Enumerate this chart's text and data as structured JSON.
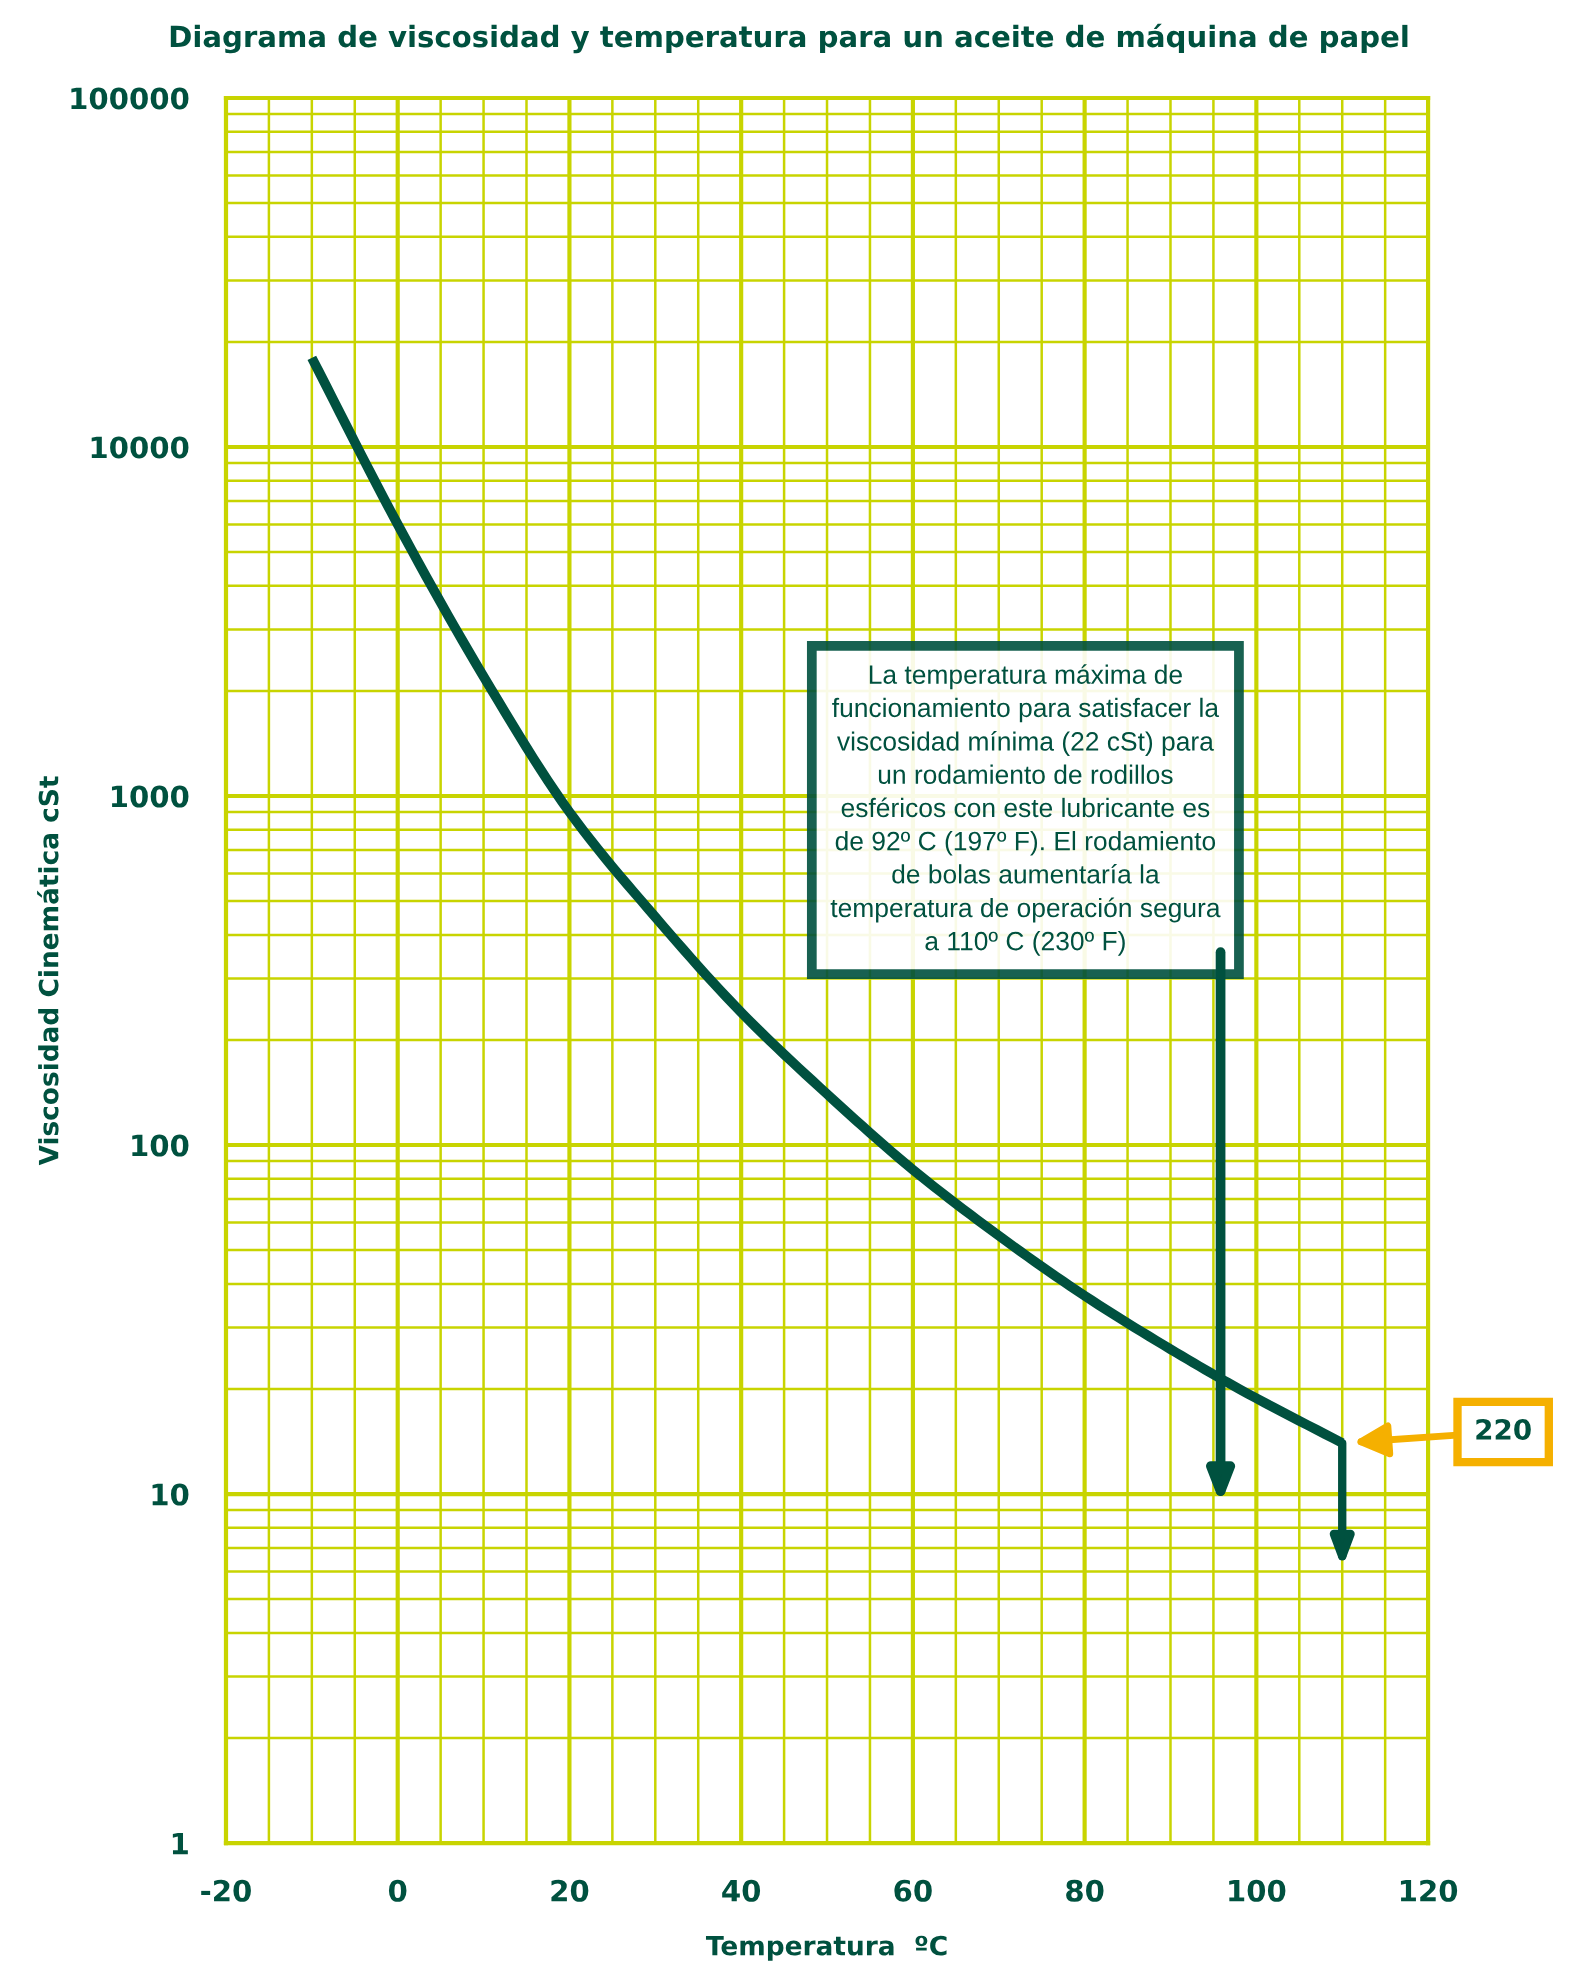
{
  "chart_data": {
    "type": "line",
    "title": "Diagrama de viscosidad y temperatura para un aceite de máquina de papel",
    "xlabel": "Temperatura  ºC",
    "ylabel": "Viscosidad Cinemática cSt",
    "x": [
      -10,
      0,
      10,
      20,
      30,
      40,
      50,
      60,
      70,
      80,
      90,
      98,
      110
    ],
    "series": [
      {
        "name": "220",
        "color": "#00513f",
        "values": [
          18000,
          6000,
          2200,
          900,
          450,
          240,
          140,
          85,
          55,
          37,
          26,
          20,
          14
        ]
      }
    ],
    "xlim": [
      -20,
      120
    ],
    "xticks": [
      -20,
      {
        "value": -15,
        "label": null
      },
      {
        "value": -10,
        "label": null
      },
      {
        "value": -5,
        "label": null
      },
      0,
      {
        "value": 5,
        "label": null
      },
      {
        "value": 10,
        "label": null
      },
      {
        "value": 15,
        "label": null
      },
      20,
      {
        "value": 25,
        "label": null
      },
      {
        "value": 30,
        "label": null
      },
      {
        "value": 35,
        "label": null
      },
      40,
      {
        "value": 45,
        "label": null
      },
      {
        "value": 50,
        "label": null
      },
      {
        "value": 55,
        "label": null
      },
      60,
      {
        "value": 65,
        "label": null
      },
      {
        "value": 70,
        "label": null
      },
      {
        "value": 75,
        "label": null
      },
      80,
      {
        "value": 85,
        "label": null
      },
      {
        "value": 90,
        "label": null
      },
      {
        "value": 95,
        "label": null
      },
      100,
      {
        "value": 105,
        "label": null
      },
      {
        "value": 110,
        "label": null
      },
      {
        "value": 115,
        "label": null
      },
      120
    ],
    "ylim": [
      1,
      100000
    ],
    "yticks": [
      1,
      {
        "value": 2,
        "label": null
      },
      {
        "value": 3,
        "label": null
      },
      {
        "value": 4,
        "label": null
      },
      {
        "value": 5,
        "label": null
      },
      {
        "value": 6,
        "label": null
      },
      {
        "value": 7,
        "label": null
      },
      {
        "value": 8,
        "label": null
      },
      {
        "value": 9,
        "label": null
      },
      10,
      {
        "value": 20,
        "label": null
      },
      {
        "value": 30,
        "label": null
      },
      {
        "value": 40,
        "label": null
      },
      {
        "value": 50,
        "label": null
      },
      {
        "value": 60,
        "label": null
      },
      {
        "value": 70,
        "label": null
      },
      {
        "value": 80,
        "label": null
      },
      {
        "value": 90,
        "label": null
      },
      100,
      {
        "value": 200,
        "label": null
      },
      {
        "value": 300,
        "label": null
      },
      {
        "value": 400,
        "label": null
      },
      {
        "value": 500,
        "label": null
      },
      {
        "value": 600,
        "label": null
      },
      {
        "value": 700,
        "label": null
      },
      {
        "value": 800,
        "label": null
      },
      {
        "value": 900,
        "label": null
      },
      1000,
      {
        "value": 2000,
        "label": null
      },
      {
        "value": 3000,
        "label": null
      },
      {
        "value": 4000,
        "label": null
      },
      {
        "value": 5000,
        "label": null
      },
      {
        "value": 6000,
        "label": null
      },
      {
        "value": 7000,
        "label": null
      },
      {
        "value": 8000,
        "label": null
      },
      {
        "value": 9000,
        "label": null
      },
      10000,
      {
        "value": 20000,
        "label": null
      },
      {
        "value": 30000,
        "label": null
      },
      {
        "value": 40000,
        "label": null
      },
      {
        "value": 50000,
        "label": null
      },
      {
        "value": 60000,
        "label": null
      },
      {
        "value": 70000,
        "label": null
      },
      {
        "value": 80000,
        "label": null
      },
      {
        "value": 90000,
        "label": null
      },
      100000
    ],
    "log": "y",
    "grid": true,
    "annotations": [
      "La temperatura máxima de\nfuncionamiento para satisfacer la\nviscosidad mínima (22 cSt) para\nun rodamiento de rodillos\nesféricos con este lubricante es\nde 92º C (197º F). El rodamiento\nde bolas aumentaría la\ntemperatura de operación segura\na 110º C (230º F)"
    ]
  }
}
